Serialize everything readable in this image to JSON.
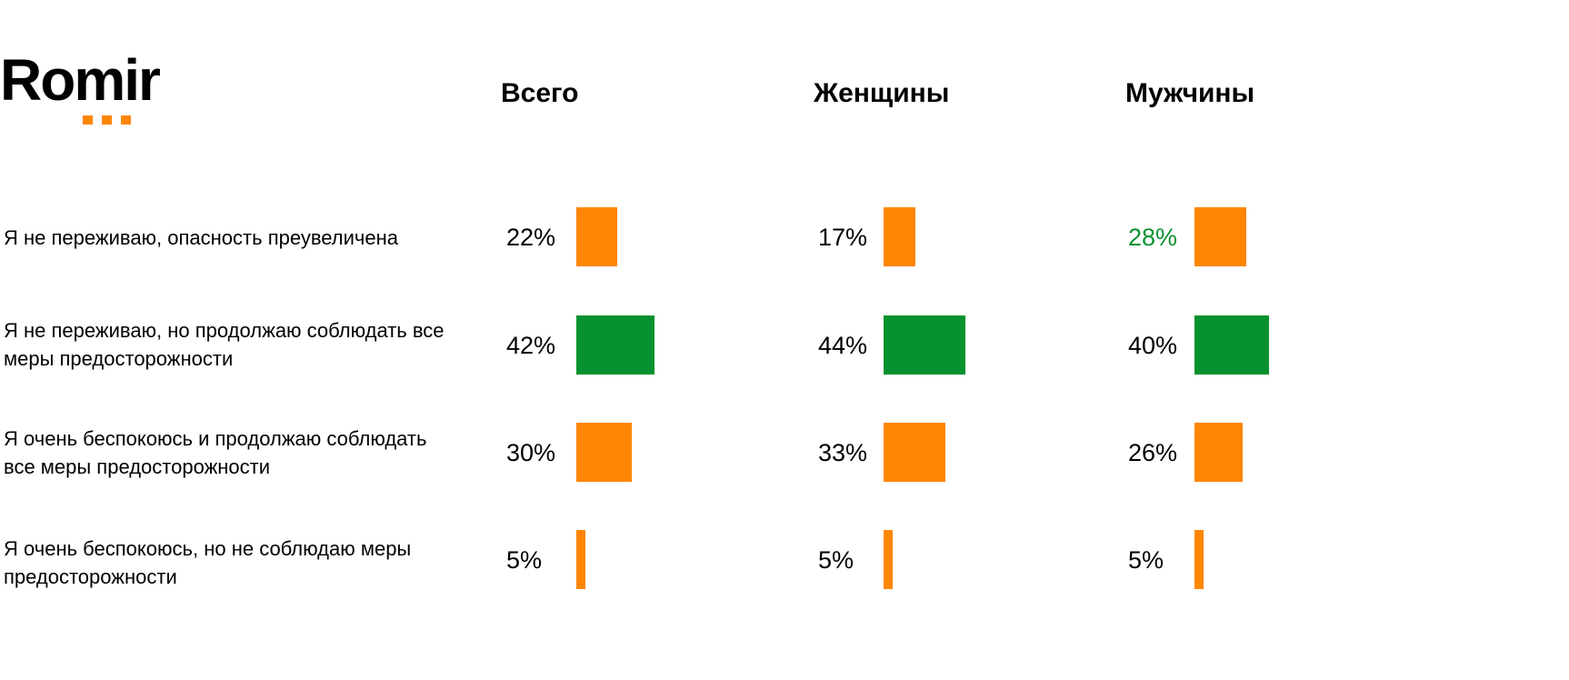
{
  "logo": {
    "text": "Romir"
  },
  "colors": {
    "orange": "#FF8605",
    "green": "#08922F",
    "text": "#000000"
  },
  "chart_data": {
    "type": "bar",
    "orientation": "horizontal",
    "groups": [
      "Всего",
      "Женщины",
      "Мужчины"
    ],
    "categories": [
      "Я не переживаю, опасность преувеличена",
      "Я не переживаю, но продолжаю соблюдать все меры предосторожности",
      "Я очень беспокоюсь и продолжаю соблюдать все меры предосторожности",
      "Я очень беспокоюсь, но не соблюдаю меры предосторожности"
    ],
    "series": [
      {
        "name": "Всего",
        "values": [
          22,
          42,
          30,
          5
        ],
        "labels": [
          "22%",
          "42%",
          "30%",
          "5%"
        ]
      },
      {
        "name": "Женщины",
        "values": [
          17,
          44,
          33,
          5
        ],
        "labels": [
          "17%",
          "44%",
          "33%",
          "5%"
        ]
      },
      {
        "name": "Мужчины",
        "values": [
          28,
          40,
          26,
          5
        ],
        "labels": [
          "28%",
          "40%",
          "26%",
          "5%"
        ]
      }
    ],
    "highlight_category_index": 1,
    "highlighted_labels": [
      {
        "series": 2,
        "category": 0,
        "color": "#08922F"
      }
    ],
    "unit": "%"
  }
}
